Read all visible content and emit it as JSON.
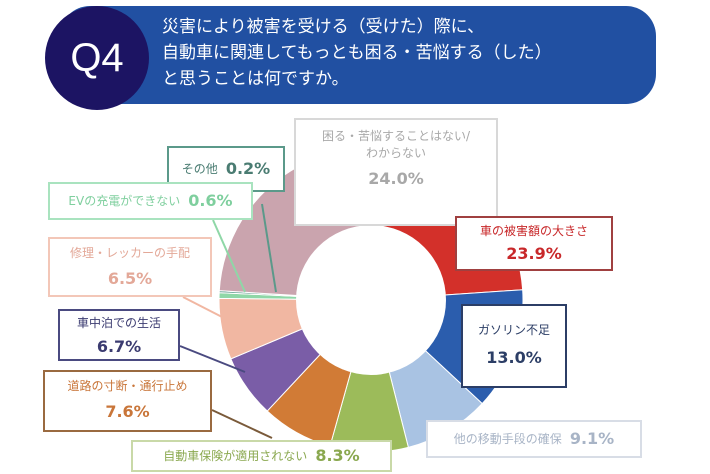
{
  "question": {
    "badge": "Q4",
    "lines": [
      "災害により被害を受ける（受けた）際に、",
      "自動車に関連してもっとも困る・苦悩する（した）",
      "と思うことは何ですか。"
    ]
  },
  "chart_data": {
    "type": "pie",
    "donut": true,
    "title": "災害により被害を受ける（受けた）際に、自動車に関連してもっとも困る・苦悩する（した）と思うことは何ですか。",
    "start": "top",
    "direction": "clockwise",
    "slices": [
      {
        "label": "車の被害額の大きさ",
        "value": 23.9,
        "value_text": "23.9%",
        "color": "#d3302a"
      },
      {
        "label": "ガソリン不足",
        "value": 13.0,
        "value_text": "13.0%",
        "color": "#2b5dad"
      },
      {
        "label": "他の移動手段の確保",
        "value": 9.1,
        "value_text": "9.1%",
        "color": "#a9c3e3"
      },
      {
        "label": "自動車保険が適用されない",
        "value": 8.3,
        "value_text": "8.3%",
        "color": "#9cbb5a"
      },
      {
        "label": "道路の寸断・通行止め",
        "value": 7.6,
        "value_text": "7.6%",
        "color": "#d17b36"
      },
      {
        "label": "車中泊での生活",
        "value": 6.7,
        "value_text": "6.7%",
        "color": "#7a5da7"
      },
      {
        "label": "修理・レッカーの手配",
        "value": 6.5,
        "value_text": "6.5%",
        "color": "#f1b7a2"
      },
      {
        "label": "EVの充電ができない",
        "value": 0.6,
        "value_text": "0.6%",
        "color": "#8fd7a7"
      },
      {
        "label": "その他",
        "value": 0.2,
        "value_text": "0.2%",
        "color": "#5b998a"
      },
      {
        "label": "困る・苦悩することはない/わからない",
        "value": 24.0,
        "value_text": "24.0%",
        "color": "#caa4ae"
      }
    ]
  }
}
